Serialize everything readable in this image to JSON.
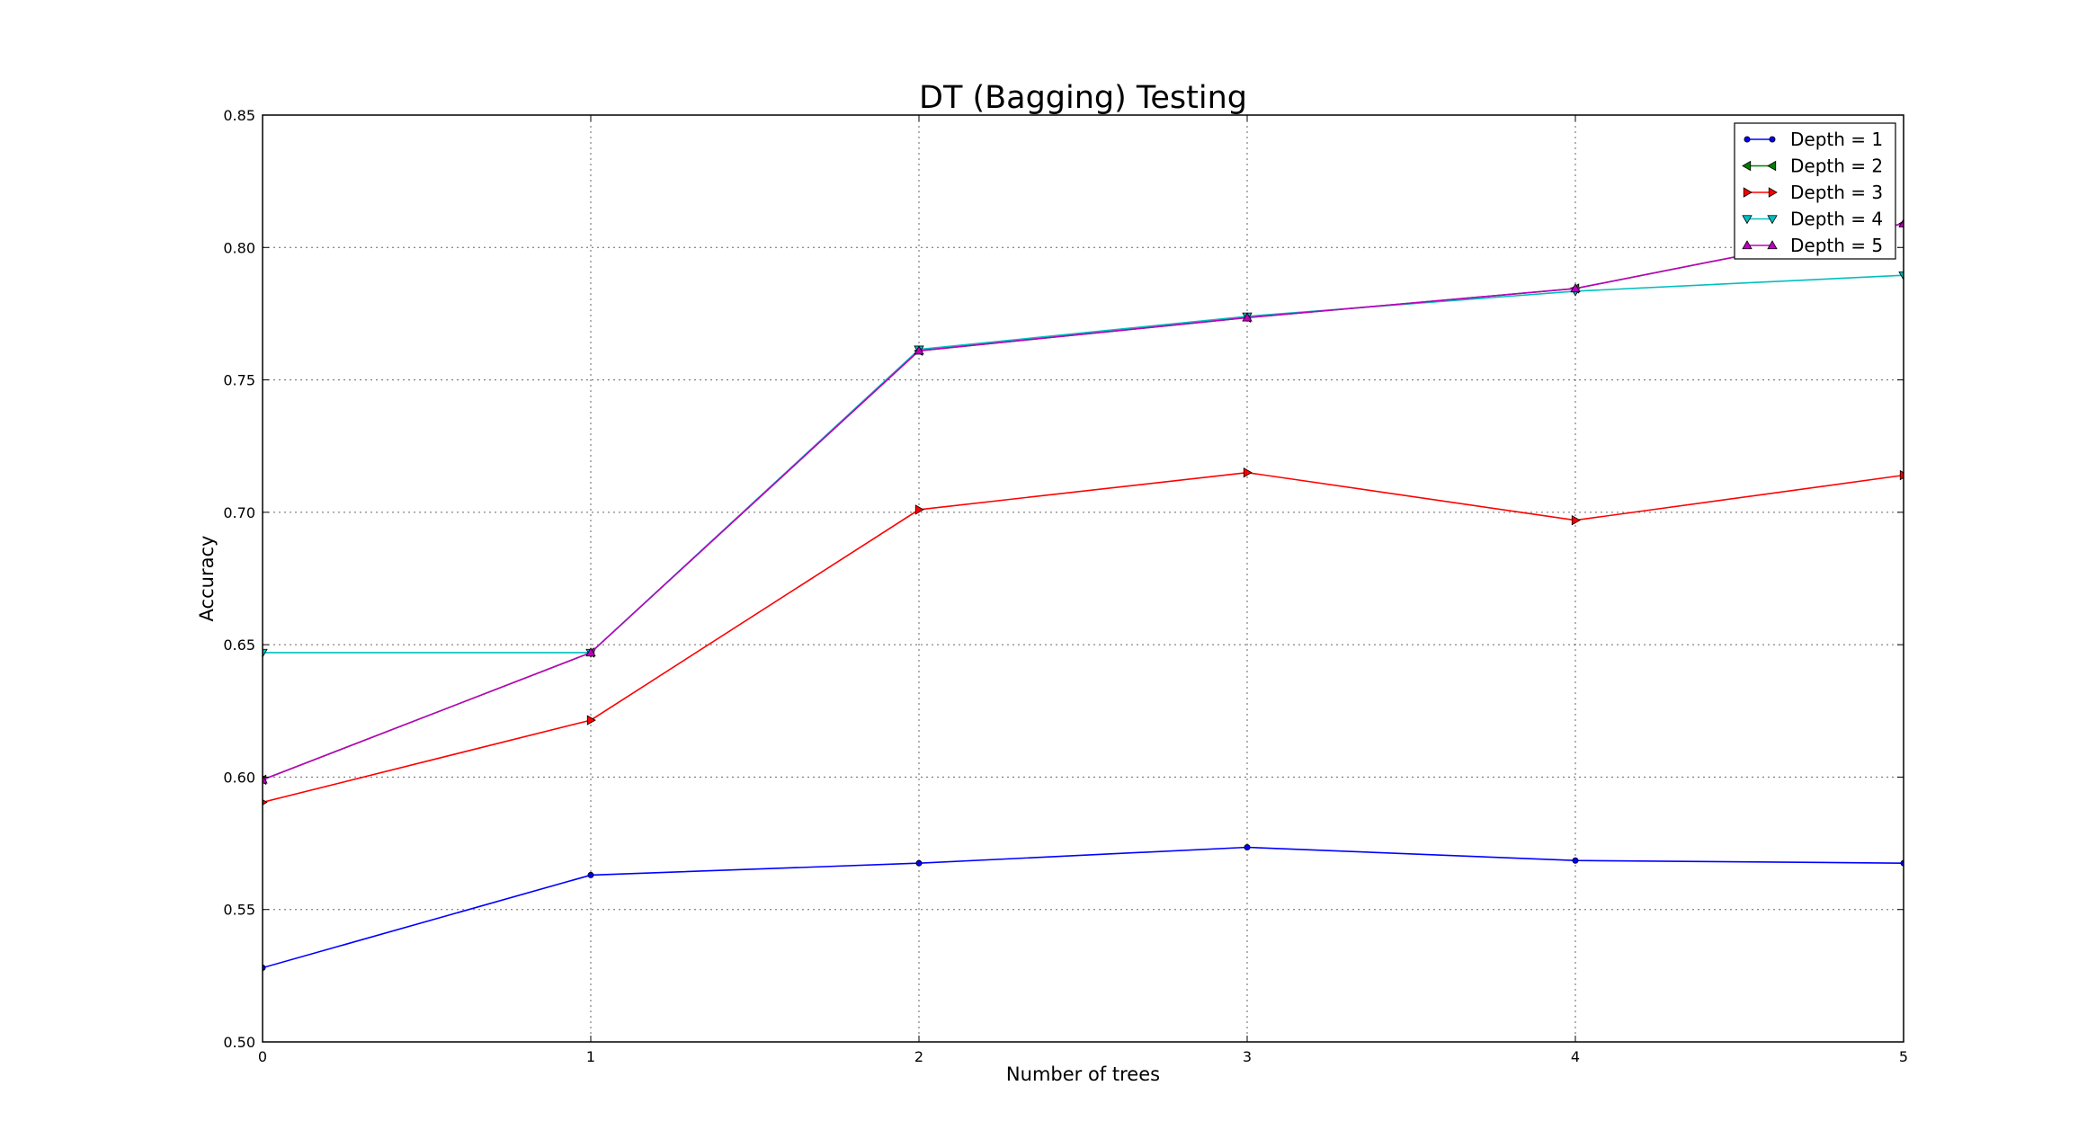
{
  "chart_data": {
    "type": "line",
    "title": "DT (Bagging) Testing",
    "xlabel": "Number of trees",
    "ylabel": "Accuracy",
    "x": [
      0,
      1,
      2,
      3,
      4,
      5
    ],
    "xlim": [
      0,
      5
    ],
    "ylim": [
      0.5,
      0.85
    ],
    "xticks": [
      "0",
      "1",
      "2",
      "3",
      "4",
      "5"
    ],
    "yticks": [
      "0.50",
      "0.55",
      "0.60",
      "0.65",
      "0.70",
      "0.75",
      "0.80",
      "0.85"
    ],
    "grid": true,
    "legend_position": "top-right",
    "series": [
      {
        "name": "Depth = 1",
        "color": "#0000ff",
        "marker": "circle",
        "values": [
          0.528,
          0.563,
          0.5675,
          0.5735,
          0.5685,
          0.5675
        ]
      },
      {
        "name": "Depth = 2",
        "color": "#008000",
        "marker": "triangle-left",
        "values": [
          0.599,
          0.647,
          0.761,
          0.7735,
          0.7845,
          0.809
        ]
      },
      {
        "name": "Depth = 3",
        "color": "#ff0000",
        "marker": "triangle-right",
        "values": [
          0.5905,
          0.6215,
          0.701,
          0.715,
          0.697,
          0.714
        ]
      },
      {
        "name": "Depth = 4",
        "color": "#00bfbf",
        "marker": "triangle-down",
        "values": [
          0.647,
          0.647,
          0.7615,
          0.774,
          0.7835,
          0.7895
        ]
      },
      {
        "name": "Depth = 5",
        "color": "#bf00bf",
        "marker": "triangle-up",
        "values": [
          0.599,
          0.647,
          0.761,
          0.7735,
          0.7845,
          0.809
        ]
      }
    ]
  }
}
